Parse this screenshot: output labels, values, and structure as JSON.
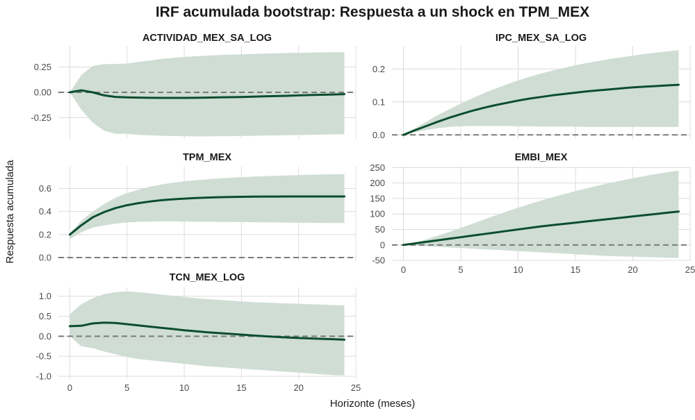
{
  "title": "IRF acumulada bootstrap: Respuesta a un shock en TPM_MEX",
  "xlabel": "Horizonte (meses)",
  "ylabel": "Respuesta acumulada",
  "colors": {
    "band": "#cfddd4",
    "line": "#0b4d2e",
    "zero_line": "#7a7a7a",
    "grid": "#dcdcdc"
  },
  "chart_data": [
    {
      "type": "area",
      "panel": "ACTIVIDAD_MEX_SA_LOG",
      "title": "ACTIVIDAD_MEX_SA_LOG",
      "x": [
        0,
        1,
        2,
        3,
        4,
        5,
        6,
        7,
        8,
        9,
        10,
        11,
        12,
        13,
        14,
        15,
        16,
        17,
        18,
        19,
        20,
        21,
        22,
        23,
        24
      ],
      "xlim": [
        -1,
        25
      ],
      "xticks": [],
      "xtick_labels": [],
      "ylim": [
        -0.46,
        0.46
      ],
      "yticks": [
        0.25,
        0.0,
        -0.25
      ],
      "ytick_labels": [
        "0.25",
        "0.00",
        "-0.25"
      ],
      "grid": true,
      "series": [
        {
          "values": [
            0.0,
            0.02,
            0.0,
            -0.03,
            -0.045,
            -0.05,
            -0.052,
            -0.054,
            -0.055,
            -0.055,
            -0.055,
            -0.054,
            -0.052,
            -0.05,
            -0.048,
            -0.046,
            -0.043,
            -0.04,
            -0.037,
            -0.034,
            -0.03,
            -0.027,
            -0.024,
            -0.021,
            -0.018
          ]
        },
        {
          "name": "",
          "values": [
            0.0,
            0.17,
            0.26,
            0.28,
            0.28,
            0.285,
            0.3,
            0.315,
            0.33,
            0.34,
            0.35,
            0.357,
            0.363,
            0.368,
            0.372,
            0.376,
            0.38,
            0.383,
            0.386,
            0.389,
            0.391,
            0.393,
            0.395,
            0.396,
            0.397
          ]
        },
        {
          "name": "",
          "values": [
            0.0,
            -0.17,
            -0.3,
            -0.38,
            -0.41,
            -0.41,
            -0.42,
            -0.425,
            -0.43,
            -0.432,
            -0.434,
            -0.435,
            -0.435,
            -0.434,
            -0.433,
            -0.432,
            -0.43,
            -0.428,
            -0.426,
            -0.424,
            -0.422,
            -0.42,
            -0.418,
            -0.416,
            -0.414
          ]
        }
      ]
    },
    {
      "type": "area",
      "panel": "IPC_MEX_SA_LOG",
      "title": "IPC_MEX_SA_LOG",
      "x": [
        0,
        1,
        2,
        3,
        4,
        5,
        6,
        7,
        8,
        9,
        10,
        11,
        12,
        13,
        14,
        15,
        16,
        17,
        18,
        19,
        20,
        21,
        22,
        23,
        24
      ],
      "xlim": [
        -1,
        25
      ],
      "xticks": [],
      "xtick_labels": [],
      "ylim": [
        -0.012,
        0.27
      ],
      "yticks": [
        0.2,
        0.1,
        0.0
      ],
      "ytick_labels": [
        "0.2",
        "0.1",
        "0.0"
      ],
      "grid": true,
      "series": [
        {
          "values": [
            0.0,
            0.014,
            0.027,
            0.04,
            0.052,
            0.063,
            0.073,
            0.082,
            0.09,
            0.097,
            0.104,
            0.11,
            0.115,
            0.12,
            0.124,
            0.128,
            0.132,
            0.135,
            0.138,
            0.141,
            0.144,
            0.146,
            0.148,
            0.15,
            0.152
          ]
        },
        {
          "values": [
            0.0,
            0.02,
            0.04,
            0.06,
            0.078,
            0.095,
            0.111,
            0.126,
            0.14,
            0.153,
            0.165,
            0.176,
            0.186,
            0.195,
            0.203,
            0.211,
            0.218,
            0.224,
            0.23,
            0.235,
            0.24,
            0.245,
            0.249,
            0.253,
            0.257
          ]
        },
        {
          "values": [
            0.0,
            0.008,
            0.015,
            0.02,
            0.024,
            0.026,
            0.027,
            0.027,
            0.027,
            0.027,
            0.026,
            0.026,
            0.025,
            0.025,
            0.025,
            0.025,
            0.024,
            0.024,
            0.024,
            0.024,
            0.024,
            0.024,
            0.024,
            0.024,
            0.024
          ]
        }
      ]
    },
    {
      "type": "area",
      "panel": "TPM_MEX",
      "title": "TPM_MEX",
      "x": [
        0,
        1,
        2,
        3,
        4,
        5,
        6,
        7,
        8,
        9,
        10,
        11,
        12,
        13,
        14,
        15,
        16,
        17,
        18,
        19,
        20,
        21,
        22,
        23,
        24
      ],
      "xlim": [
        -1,
        25
      ],
      "xticks": [],
      "xtick_labels": [],
      "ylim": [
        -0.03,
        0.79
      ],
      "yticks": [
        0.6,
        0.4,
        0.2,
        0.0
      ],
      "ytick_labels": [
        "0.6",
        "0.4",
        "0.2",
        "0.0"
      ],
      "grid": true,
      "series": [
        {
          "values": [
            0.2,
            0.28,
            0.35,
            0.395,
            0.43,
            0.455,
            0.473,
            0.487,
            0.498,
            0.506,
            0.512,
            0.517,
            0.521,
            0.524,
            0.526,
            0.528,
            0.529,
            0.53,
            0.53,
            0.531,
            0.531,
            0.531,
            0.531,
            0.531,
            0.531
          ]
        },
        {
          "values": [
            0.21,
            0.32,
            0.4,
            0.465,
            0.52,
            0.56,
            0.59,
            0.615,
            0.635,
            0.65,
            0.662,
            0.672,
            0.68,
            0.687,
            0.693,
            0.698,
            0.703,
            0.707,
            0.71,
            0.713,
            0.716,
            0.719,
            0.721,
            0.723,
            0.725
          ]
        },
        {
          "values": [
            0.16,
            0.22,
            0.26,
            0.28,
            0.295,
            0.305,
            0.31,
            0.313,
            0.314,
            0.314,
            0.313,
            0.312,
            0.311,
            0.31,
            0.309,
            0.308,
            0.307,
            0.306,
            0.305,
            0.304,
            0.303,
            0.302,
            0.301,
            0.3,
            0.3
          ]
        }
      ]
    },
    {
      "type": "area",
      "panel": "EMBI_MEX",
      "title": "EMBI_MEX",
      "x": [
        0,
        1,
        2,
        3,
        4,
        5,
        6,
        7,
        8,
        9,
        10,
        11,
        12,
        13,
        14,
        15,
        16,
        17,
        18,
        19,
        20,
        21,
        22,
        23,
        24
      ],
      "xlim": [
        -1,
        25
      ],
      "xticks": [
        0,
        5,
        10,
        15,
        20,
        25
      ],
      "xtick_labels": [
        "0",
        "5",
        "10",
        "15",
        "20",
        "25"
      ],
      "ylim": [
        -52,
        253
      ],
      "yticks": [
        250,
        200,
        150,
        100,
        50,
        0,
        -50
      ],
      "ytick_labels": [
        "250",
        "200",
        "150",
        "100",
        "50",
        "0",
        "-50"
      ],
      "grid": true,
      "series": [
        {
          "values": [
            0,
            5,
            10,
            15,
            20,
            25,
            30,
            35,
            40,
            45,
            50,
            55,
            60,
            64,
            68,
            72,
            76,
            80,
            84,
            88,
            92,
            96,
            100,
            104,
            108
          ]
        },
        {
          "values": [
            0,
            8,
            18,
            30,
            42,
            55,
            68,
            82,
            95,
            108,
            120,
            132,
            143,
            154,
            164,
            174,
            183,
            192,
            200,
            208,
            215,
            222,
            229,
            235,
            240
          ]
        },
        {
          "values": [
            0,
            -2,
            -4,
            -6,
            -8,
            -10,
            -12,
            -14,
            -16,
            -18,
            -20,
            -22,
            -24,
            -26,
            -28,
            -30,
            -32,
            -34,
            -36,
            -37,
            -38,
            -39,
            -40,
            -41,
            -42
          ]
        }
      ]
    },
    {
      "type": "area",
      "panel": "TCN_MEX_LOG",
      "title": "TCN_MEX_LOG",
      "x": [
        0,
        1,
        2,
        3,
        4,
        5,
        6,
        7,
        8,
        9,
        10,
        11,
        12,
        13,
        14,
        15,
        16,
        17,
        18,
        19,
        20,
        21,
        22,
        23,
        24
      ],
      "xlim": [
        -1,
        25
      ],
      "xticks": [
        0,
        5,
        10,
        15,
        20,
        25
      ],
      "xtick_labels": [
        "0",
        "5",
        "10",
        "15",
        "20",
        "25"
      ],
      "ylim": [
        -1.07,
        1.22
      ],
      "yticks": [
        1.0,
        0.5,
        0.0,
        -0.5,
        -1.0
      ],
      "ytick_labels": [
        "1.0",
        "0.5",
        "0.0",
        "-0.5",
        "-1.0"
      ],
      "grid": true,
      "series": [
        {
          "values": [
            0.25,
            0.26,
            0.32,
            0.34,
            0.33,
            0.3,
            0.27,
            0.24,
            0.21,
            0.18,
            0.15,
            0.125,
            0.1,
            0.08,
            0.06,
            0.04,
            0.02,
            0.0,
            -0.015,
            -0.03,
            -0.045,
            -0.055,
            -0.065,
            -0.075,
            -0.085
          ]
        },
        {
          "values": [
            0.55,
            0.8,
            0.95,
            1.05,
            1.1,
            1.12,
            1.1,
            1.07,
            1.04,
            1.01,
            0.98,
            0.95,
            0.93,
            0.91,
            0.89,
            0.87,
            0.85,
            0.84,
            0.83,
            0.82,
            0.81,
            0.8,
            0.79,
            0.78,
            0.77
          ]
        },
        {
          "values": [
            0.0,
            -0.25,
            -0.3,
            -0.38,
            -0.45,
            -0.52,
            -0.57,
            -0.6,
            -0.63,
            -0.66,
            -0.69,
            -0.72,
            -0.75,
            -0.77,
            -0.79,
            -0.81,
            -0.83,
            -0.85,
            -0.87,
            -0.89,
            -0.91,
            -0.93,
            -0.95,
            -0.97,
            -0.98
          ]
        }
      ]
    }
  ]
}
